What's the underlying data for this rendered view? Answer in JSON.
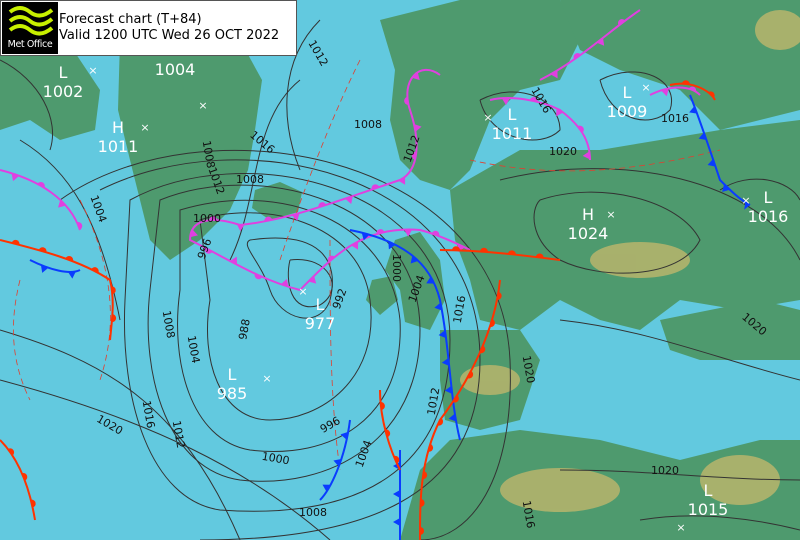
{
  "header": {
    "logo_text": "Met Office",
    "title": "Forecast chart (T+84)",
    "valid": "Valid 1200 UTC Wed 26 OCT 2022"
  },
  "colors": {
    "sea": "#62c9df",
    "land": "#4e9a6e",
    "highland": "#c7b86c",
    "isobar": "#333333",
    "cold_front": "#0a3cff",
    "warm_front": "#ff3300",
    "occluded_front": "#e040e0",
    "thickness": "#e04030"
  },
  "pressure_centres": [
    {
      "type": "L",
      "value": "1002"
    },
    {
      "type": "H",
      "value": "1011"
    },
    {
      "type": "",
      "value": "1004"
    },
    {
      "type": "L",
      "value": "977"
    },
    {
      "type": "L",
      "value": "985"
    },
    {
      "type": "L",
      "value": "1011"
    },
    {
      "type": "L",
      "value": "1009"
    },
    {
      "type": "H",
      "value": "1024"
    },
    {
      "type": "L",
      "value": "1016"
    },
    {
      "type": "L",
      "value": "1015"
    }
  ],
  "isobar_labels": [
    "1012",
    "1008",
    "1016",
    "1012",
    "1004",
    "1008",
    "1000",
    "996",
    "992",
    "988",
    "1008",
    "1004",
    "1016",
    "1012",
    "1020",
    "1000",
    "1004",
    "996",
    "1000",
    "1008",
    "1012",
    "1016",
    "1020",
    "1020",
    "1020",
    "1016",
    "1012",
    "1016",
    "1020",
    "1004",
    "1008",
    "1016"
  ]
}
